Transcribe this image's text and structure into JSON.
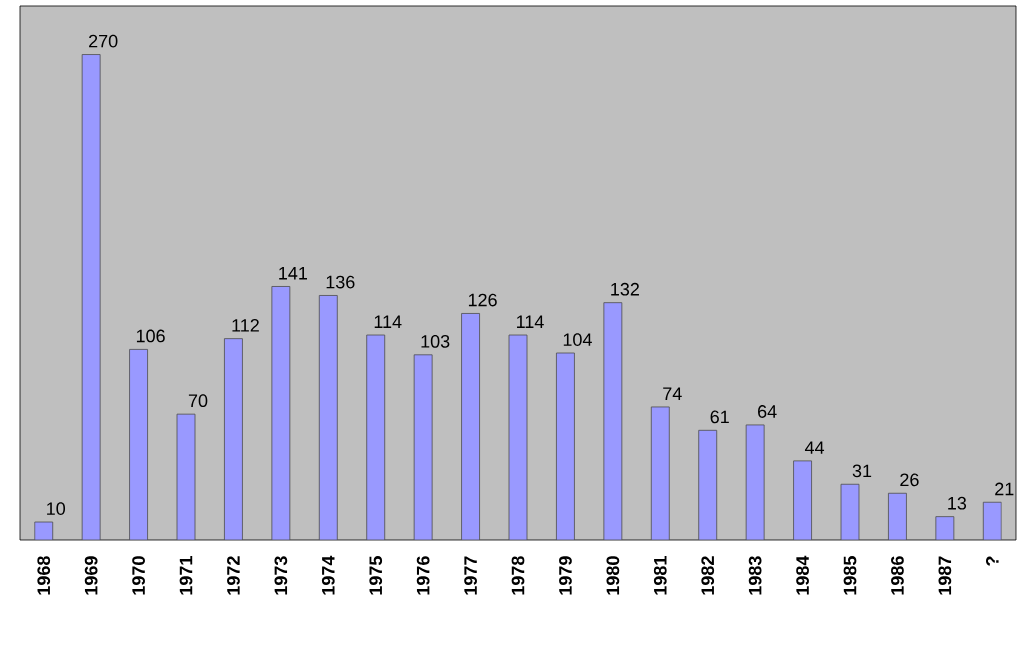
{
  "chart_data": {
    "type": "bar",
    "categories": [
      "1968",
      "1969",
      "1970",
      "1971",
      "1972",
      "1973",
      "1974",
      "1975",
      "1976",
      "1977",
      "1978",
      "1979",
      "1980",
      "1981",
      "1982",
      "1983",
      "1984",
      "1985",
      "1986",
      "1987",
      "?"
    ],
    "values": [
      10,
      270,
      106,
      70,
      112,
      141,
      136,
      114,
      103,
      126,
      114,
      104,
      132,
      74,
      61,
      64,
      44,
      31,
      26,
      13,
      21
    ],
    "color": "#9999ff",
    "data_labels": true
  }
}
